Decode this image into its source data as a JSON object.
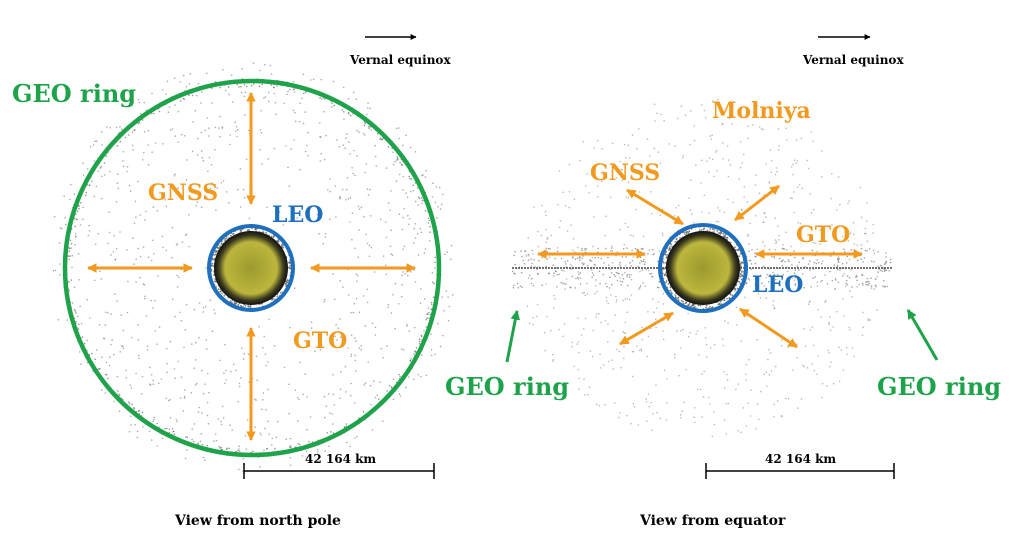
{
  "colors": {
    "geo": "#1fa34a",
    "orange": "#f29a1f",
    "leo": "#1f6fbf",
    "black": "#000000",
    "dots": "#777777",
    "earth_core": "#b8b23a",
    "earth_edge": "#2a2a1a"
  },
  "left_panel": {
    "vernal": "Vernal equinox",
    "geo_label": "GEO ring",
    "gnss_label": "GNSS",
    "leo_label": "LEO",
    "gto_label": "GTO",
    "scale_label": "42 164 km",
    "caption": "View from north pole"
  },
  "right_panel": {
    "vernal": "Vernal equinox",
    "molniya_label": "Molniya",
    "gnss_label": "GNSS",
    "gto_label": "GTO",
    "leo_label": "LEO",
    "geo_label_left": "GEO ring",
    "geo_label_right": "GEO ring",
    "scale_label": "42 164 km",
    "caption": "View from equator"
  }
}
